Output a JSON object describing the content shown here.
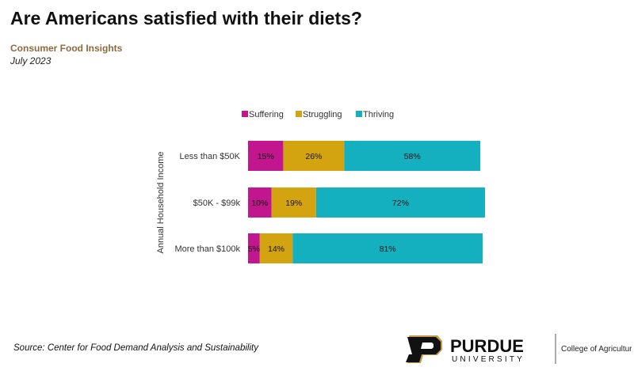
{
  "header": {
    "title": "Are Americans satisfied with their diets?",
    "subtitle": "Consumer Food Insights",
    "date": "July 2023"
  },
  "colors": {
    "subtitle": "#8c6a3c",
    "suffering": "#c2168f",
    "struggling": "#d4a410",
    "thriving": "#15b0bf",
    "logo_gold": "#c49a4a"
  },
  "chart_data": {
    "type": "bar",
    "orientation": "horizontal",
    "stacked": true,
    "title": "Are Americans satisfied with their diets?",
    "ylabel": "Annual Household Income",
    "xlabel": "",
    "categories": [
      "Less than $50K",
      "$50K - $99k",
      "More than $100k"
    ],
    "series": [
      {
        "name": "Suffering",
        "color": "#c2168f",
        "values": [
          15,
          10,
          5
        ],
        "labels": [
          "15%",
          "10%",
          "5%"
        ]
      },
      {
        "name": "Struggling",
        "color": "#d4a410",
        "values": [
          26,
          19,
          14
        ],
        "labels": [
          "26%",
          "19%",
          "14%"
        ]
      },
      {
        "name": "Thriving",
        "color": "#15b0bf",
        "values": [
          58,
          72,
          81
        ],
        "labels": [
          "58%",
          "72%",
          "81%"
        ]
      }
    ],
    "xlim": [
      0,
      100
    ],
    "legend": "top",
    "grid": false
  },
  "footer": {
    "source": "Source:  Center for Food Demand Analysis and Sustainability",
    "logo_name": "PURDUE",
    "logo_sub": "UNIVERSITY",
    "logo_tagline": "College of Agriculture"
  }
}
